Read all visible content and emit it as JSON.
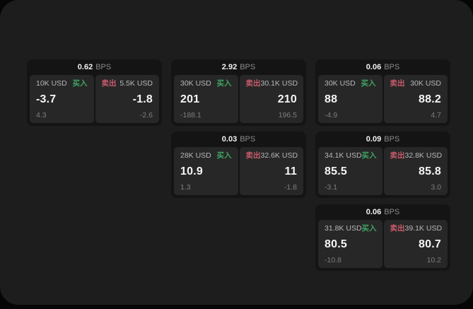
{
  "colors": {
    "buy_green": "#3ea562",
    "sell_red": "#c75b6b",
    "background": "#1d1d1e",
    "card": "#141414",
    "tile": "#272727"
  },
  "cards": [
    {
      "bps_value": "0.62",
      "bps_unit": "BPS",
      "buy": {
        "amount": "10K USD",
        "side_label": "买入",
        "value": "-3.7",
        "sub_value": "4.3"
      },
      "sell": {
        "amount": "5.5K USD",
        "side_label": "卖出",
        "value": "-1.8",
        "sub_value": "-2.6"
      }
    },
    {
      "bps_value": "2.92",
      "bps_unit": "BPS",
      "buy": {
        "amount": "30K USD",
        "side_label": "买入",
        "value": "201",
        "sub_value": "-188.1"
      },
      "sell": {
        "amount": "30.1K USD",
        "side_label": "卖出",
        "value": "210",
        "sub_value": "196.5"
      }
    },
    {
      "bps_value": "0.06",
      "bps_unit": "BPS",
      "buy": {
        "amount": "30K USD",
        "side_label": "买入",
        "value": "88",
        "sub_value": "-4.9"
      },
      "sell": {
        "amount": "30K USD",
        "side_label": "卖出",
        "value": "88.2",
        "sub_value": "4.7"
      }
    },
    {
      "bps_value": "0.03",
      "bps_unit": "BPS",
      "buy": {
        "amount": "28K USD",
        "side_label": "买入",
        "value": "10.9",
        "sub_value": "1.3"
      },
      "sell": {
        "amount": "32.6K USD",
        "side_label": "卖出",
        "value": "11",
        "sub_value": "-1.8"
      }
    },
    {
      "bps_value": "0.09",
      "bps_unit": "BPS",
      "buy": {
        "amount": "34.1K USD",
        "side_label": "买入",
        "value": "85.5",
        "sub_value": "-3.1"
      },
      "sell": {
        "amount": "32.8K USD",
        "side_label": "卖出",
        "value": "85.8",
        "sub_value": "3.0"
      }
    },
    {
      "bps_value": "0.06",
      "bps_unit": "BPS",
      "buy": {
        "amount": "31.8K USD",
        "side_label": "买入",
        "value": "80.5",
        "sub_value": "-10.8"
      },
      "sell": {
        "amount": "39.1K USD",
        "side_label": "卖出",
        "value": "80.7",
        "sub_value": "10.2"
      }
    }
  ]
}
